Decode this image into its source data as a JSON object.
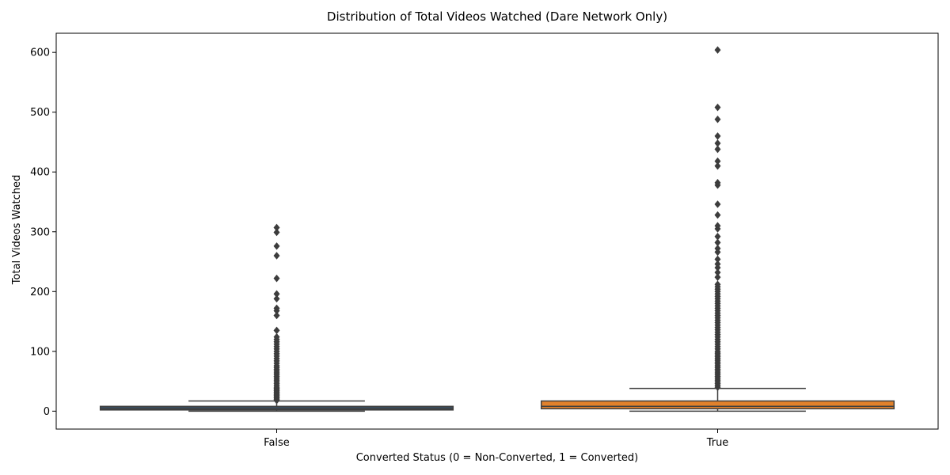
{
  "chart_data": {
    "type": "box",
    "title": "Distribution of Total Videos Watched (Dare Network Only)",
    "xlabel": "Converted Status (0 = Non-Converted, 1 = Converted)",
    "ylabel": "Total Videos Watched",
    "ylim": [
      -30,
      632
    ],
    "yticks": [
      0,
      100,
      200,
      300,
      400,
      500,
      600
    ],
    "grid": false,
    "legend": "none",
    "categories": [
      "False",
      "True"
    ],
    "boxes": [
      {
        "category": "False",
        "color": "#3a4d5e",
        "min": 0,
        "q1": 2,
        "median": 4,
        "q3": 8,
        "max": 17,
        "outliers": [
          18,
          20,
          22,
          24,
          26,
          28,
          30,
          32,
          34,
          36,
          38,
          40,
          43,
          46,
          49,
          52,
          55,
          58,
          61,
          64,
          67,
          70,
          73,
          76,
          80,
          84,
          88,
          92,
          96,
          100,
          104,
          108,
          112,
          116,
          120,
          124,
          135,
          160,
          168,
          172,
          188,
          196,
          222,
          260,
          276,
          299,
          307
        ]
      },
      {
        "category": "True",
        "color": "#e1812c",
        "min": 0,
        "q1": 4,
        "median": 8,
        "q3": 17,
        "max": 38,
        "outliers": [
          40,
          43,
          46,
          49,
          52,
          55,
          58,
          61,
          64,
          67,
          70,
          73,
          76,
          79,
          82,
          85,
          88,
          91,
          94,
          97,
          100,
          104,
          108,
          112,
          116,
          120,
          124,
          128,
          132,
          136,
          140,
          144,
          148,
          152,
          156,
          160,
          164,
          168,
          172,
          176,
          180,
          184,
          188,
          192,
          196,
          200,
          204,
          208,
          212,
          224,
          232,
          240,
          246,
          254,
          266,
          272,
          282,
          292,
          305,
          310,
          328,
          346,
          378,
          382,
          410,
          418,
          438,
          448,
          460,
          488,
          508,
          604
        ]
      }
    ]
  }
}
